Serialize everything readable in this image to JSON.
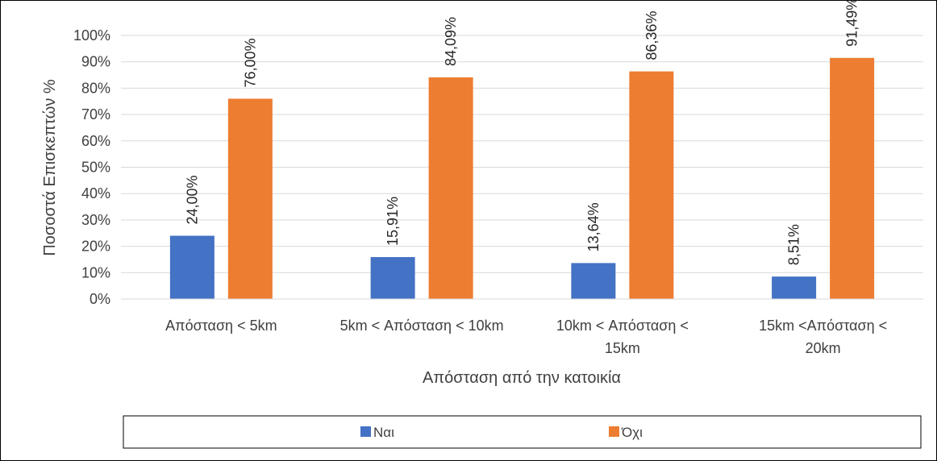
{
  "chart_data": {
    "type": "bar",
    "title": "",
    "xlabel": "Απόσταση από την κατοικία",
    "ylabel": "Ποσοστά Επισκεπτών %",
    "ylim": [
      0,
      100
    ],
    "yticks": [
      "0%",
      "10%",
      "20%",
      "30%",
      "40%",
      "50%",
      "60%",
      "70%",
      "80%",
      "90%",
      "100%"
    ],
    "grid": true,
    "legend_position": "bottom",
    "categories": [
      [
        "Απόσταση < 5km"
      ],
      [
        "5km < Απόσταση < 10km"
      ],
      [
        "10km < Απόσταση <",
        "15km"
      ],
      [
        "15km <Απόσταση <",
        "20km"
      ]
    ],
    "series": [
      {
        "name": "Ναι",
        "color": "#4472C4",
        "values": [
          24.0,
          15.91,
          13.64,
          8.51
        ],
        "labels": [
          "24,00%",
          "15,91%",
          "13,64%",
          "8,51%"
        ]
      },
      {
        "name": "Όχι",
        "color": "#ED7D31",
        "values": [
          76.0,
          84.09,
          86.36,
          91.49
        ],
        "labels": [
          "76,00%",
          "84,09%",
          "86,36%",
          "91,49%"
        ]
      }
    ]
  }
}
